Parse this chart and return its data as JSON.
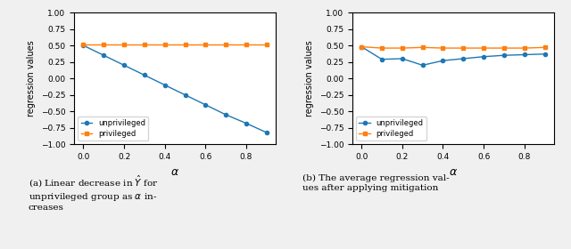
{
  "alpha": [
    0.0,
    0.1,
    0.2,
    0.3,
    0.4,
    0.5,
    0.6,
    0.7,
    0.8,
    0.9
  ],
  "left_unprivileged": [
    0.5,
    0.35,
    0.2,
    0.05,
    -0.1,
    -0.25,
    -0.4,
    -0.55,
    -0.68,
    -0.82
  ],
  "left_privileged": [
    0.52,
    0.52,
    0.52,
    0.52,
    0.52,
    0.52,
    0.52,
    0.52,
    0.52,
    0.52
  ],
  "right_unprivileged": [
    0.48,
    0.29,
    0.3,
    0.2,
    0.27,
    0.3,
    0.33,
    0.35,
    0.36,
    0.37
  ],
  "right_privileged": [
    0.48,
    0.46,
    0.46,
    0.47,
    0.46,
    0.46,
    0.46,
    0.46,
    0.46,
    0.47
  ],
  "blue_color": "#1f77b4",
  "orange_color": "#ff7f0e",
  "ylim": [
    -1.0,
    1.0
  ],
  "yticks": [
    -1.0,
    -0.75,
    -0.5,
    -0.25,
    0.0,
    0.25,
    0.5,
    0.75,
    1.0
  ],
  "xticks": [
    0.0,
    0.2,
    0.4,
    0.6,
    0.8
  ],
  "xlabel": "α",
  "ylabel": "regression values",
  "legend_unprivileged": "unprivileged",
  "legend_privileged": "privileged",
  "caption_a": "(a) Linear decrease in $\\hat{Y}$ for\nunprivileged group as $\\alpha$ in-\ncreases",
  "caption_b": "(b) The average regression val-\nues after applying mitigation",
  "fig_bg": "#f0f0f0",
  "plot_bg": "white"
}
